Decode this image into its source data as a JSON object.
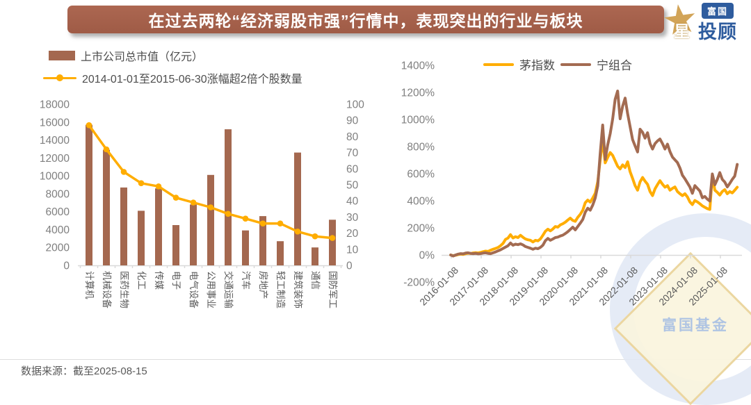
{
  "header": {
    "title": "在过去两轮“经济弱股市强”行情中，表现突出的行业与板块",
    "bar_color": "#A5614C",
    "logo": {
      "badge": "富国",
      "star_char": "星",
      "suffix": "投顾",
      "badge_bg": "#2E5C9E",
      "star_color": "#D2A458"
    }
  },
  "watermark": {
    "text": "富国基金"
  },
  "footer": {
    "source_text": "数据来源：截至2025-08-15"
  },
  "chart_data": [
    {
      "id": "industry-combo-chart",
      "type": "bar",
      "title": "",
      "categories": [
        "计算机",
        "机械设备",
        "医药生物",
        "化工",
        "传媒",
        "电子",
        "电气设备",
        "公用事业",
        "交通运输",
        "汽车",
        "房地产",
        "轻工制造",
        "建筑装饰",
        "通信",
        "国防军工"
      ],
      "left_axis": {
        "min": 0,
        "max": 18000,
        "step": 2000
      },
      "right_axis": {
        "min": 0,
        "max": 100,
        "step": 10
      },
      "grid": false,
      "legend_position": "top-left",
      "series": [
        {
          "name": "上市公司总市值（亿元）",
          "type": "bar",
          "axis": "left",
          "color": "#A4684F",
          "values": [
            15700,
            12900,
            8700,
            6100,
            8600,
            4500,
            6800,
            10100,
            15200,
            3900,
            5500,
            2700,
            12600,
            2000,
            5100
          ]
        },
        {
          "name": "2014-01-01至2015-06-30涨幅超2倍个股数量",
          "type": "line",
          "axis": "right",
          "color": "#FFAD00",
          "values": [
            87,
            72,
            58,
            51,
            49,
            42,
            39,
            36,
            32,
            29,
            26,
            26,
            21,
            18,
            17
          ]
        }
      ]
    },
    {
      "id": "mao-ning-trend-chart",
      "type": "line",
      "title": "",
      "y_axis": {
        "min": -200,
        "max": 1400,
        "step": 200,
        "suffix": "%"
      },
      "x_tick_labels": [
        "2016-01-08",
        "2017-01-08",
        "2018-01-08",
        "2019-01-08",
        "2020-01-08",
        "2021-01-08",
        "2022-01-08",
        "2023-01-08",
        "2024-01-08",
        "2025-01-08"
      ],
      "grid": false,
      "legend_position": "top-center",
      "series": [
        {
          "name": "茅指数",
          "color": "#FFAD00",
          "points": [
            [
              "2016-01",
              0
            ],
            [
              "2016-02",
              -5
            ],
            [
              "2016-03",
              -2
            ],
            [
              "2016-04",
              3
            ],
            [
              "2016-05",
              6
            ],
            [
              "2016-06",
              4
            ],
            [
              "2016-07",
              9
            ],
            [
              "2016-08",
              13
            ],
            [
              "2016-09",
              11
            ],
            [
              "2016-10",
              15
            ],
            [
              "2016-11",
              17
            ],
            [
              "2016-12",
              15
            ],
            [
              "2017-01",
              19
            ],
            [
              "2017-02",
              24
            ],
            [
              "2017-03",
              28
            ],
            [
              "2017-04",
              26
            ],
            [
              "2017-05",
              35
            ],
            [
              "2017-06",
              42
            ],
            [
              "2017-07",
              48
            ],
            [
              "2017-08",
              55
            ],
            [
              "2017-09",
              68
            ],
            [
              "2017-10",
              85
            ],
            [
              "2017-11",
              115
            ],
            [
              "2017-12",
              125
            ],
            [
              "2018-01",
              150
            ],
            [
              "2018-02",
              125
            ],
            [
              "2018-03",
              135
            ],
            [
              "2018-04",
              128
            ],
            [
              "2018-05",
              145
            ],
            [
              "2018-06",
              130
            ],
            [
              "2018-07",
              118
            ],
            [
              "2018-08",
              112
            ],
            [
              "2018-09",
              108
            ],
            [
              "2018-10",
              96
            ],
            [
              "2018-11",
              108
            ],
            [
              "2018-12",
              104
            ],
            [
              "2019-01",
              118
            ],
            [
              "2019-02",
              145
            ],
            [
              "2019-03",
              175
            ],
            [
              "2019-04",
              190
            ],
            [
              "2019-05",
              178
            ],
            [
              "2019-06",
              192
            ],
            [
              "2019-07",
              210
            ],
            [
              "2019-08",
              205
            ],
            [
              "2019-09",
              222
            ],
            [
              "2019-10",
              230
            ],
            [
              "2019-11",
              242
            ],
            [
              "2019-12",
              258
            ],
            [
              "2020-01",
              272
            ],
            [
              "2020-02",
              255
            ],
            [
              "2020-03",
              248
            ],
            [
              "2020-04",
              278
            ],
            [
              "2020-05",
              300
            ],
            [
              "2020-06",
              330
            ],
            [
              "2020-07",
              385
            ],
            [
              "2020-08",
              405
            ],
            [
              "2020-09",
              390
            ],
            [
              "2020-10",
              420
            ],
            [
              "2020-11",
              455
            ],
            [
              "2020-12",
              540
            ],
            [
              "2021-01",
              700
            ],
            [
              "2021-02",
              856
            ],
            [
              "2021-03",
              680
            ],
            [
              "2021-04",
              720
            ],
            [
              "2021-05",
              756
            ],
            [
              "2021-06",
              735
            ],
            [
              "2021-07",
              695
            ],
            [
              "2021-08",
              655
            ],
            [
              "2021-09",
              635
            ],
            [
              "2021-10",
              665
            ],
            [
              "2021-11",
              645
            ],
            [
              "2021-12",
              688
            ],
            [
              "2022-01",
              615
            ],
            [
              "2022-02",
              565
            ],
            [
              "2022-03",
              512
            ],
            [
              "2022-04",
              478
            ],
            [
              "2022-05",
              540
            ],
            [
              "2022-06",
              572
            ],
            [
              "2022-07",
              545
            ],
            [
              "2022-08",
              522
            ],
            [
              "2022-09",
              468
            ],
            [
              "2022-10",
              438
            ],
            [
              "2022-11",
              488
            ],
            [
              "2022-12",
              520
            ],
            [
              "2023-01",
              548
            ],
            [
              "2023-02",
              522
            ],
            [
              "2023-03",
              500
            ],
            [
              "2023-04",
              512
            ],
            [
              "2023-05",
              478
            ],
            [
              "2023-06",
              492
            ],
            [
              "2023-07",
              502
            ],
            [
              "2023-08",
              468
            ],
            [
              "2023-09",
              452
            ],
            [
              "2023-10",
              438
            ],
            [
              "2023-11",
              452
            ],
            [
              "2023-12",
              428
            ],
            [
              "2024-01",
              392
            ],
            [
              "2024-02",
              372
            ],
            [
              "2024-03",
              402
            ],
            [
              "2024-04",
              392
            ],
            [
              "2024-05",
              378
            ],
            [
              "2024-06",
              362
            ],
            [
              "2024-07",
              352
            ],
            [
              "2024-08",
              342
            ],
            [
              "2024-09",
              336
            ],
            [
              "2024-10",
              588
            ],
            [
              "2024-11",
              478
            ],
            [
              "2024-12",
              462
            ],
            [
              "2025-01",
              442
            ],
            [
              "2025-02",
              468
            ],
            [
              "2025-03",
              482
            ],
            [
              "2025-04",
              452
            ],
            [
              "2025-05",
              468
            ],
            [
              "2025-06",
              458
            ],
            [
              "2025-07",
              478
            ],
            [
              "2025-08",
              500
            ]
          ]
        },
        {
          "name": "宁组合",
          "color": "#A36B51",
          "points": [
            [
              "2016-01",
              0
            ],
            [
              "2016-02",
              -8
            ],
            [
              "2016-03",
              0
            ],
            [
              "2016-04",
              6
            ],
            [
              "2016-05",
              10
            ],
            [
              "2016-06",
              8
            ],
            [
              "2016-07",
              14
            ],
            [
              "2016-08",
              16
            ],
            [
              "2016-09",
              12
            ],
            [
              "2016-10",
              10
            ],
            [
              "2016-11",
              12
            ],
            [
              "2016-12",
              8
            ],
            [
              "2017-01",
              10
            ],
            [
              "2017-02",
              14
            ],
            [
              "2017-03",
              16
            ],
            [
              "2017-04",
              12
            ],
            [
              "2017-05",
              10
            ],
            [
              "2017-06",
              16
            ],
            [
              "2017-07",
              22
            ],
            [
              "2017-08",
              30
            ],
            [
              "2017-09",
              38
            ],
            [
              "2017-10",
              48
            ],
            [
              "2017-11",
              58
            ],
            [
              "2017-12",
              68
            ],
            [
              "2018-01",
              88
            ],
            [
              "2018-02",
              72
            ],
            [
              "2018-03",
              80
            ],
            [
              "2018-04",
              76
            ],
            [
              "2018-05",
              82
            ],
            [
              "2018-06",
              74
            ],
            [
              "2018-07",
              62
            ],
            [
              "2018-08",
              56
            ],
            [
              "2018-09",
              50
            ],
            [
              "2018-10",
              42
            ],
            [
              "2018-11",
              50
            ],
            [
              "2018-12",
              46
            ],
            [
              "2019-01",
              56
            ],
            [
              "2019-02",
              72
            ],
            [
              "2019-03",
              105
            ],
            [
              "2019-04",
              122
            ],
            [
              "2019-05",
              108
            ],
            [
              "2019-06",
              118
            ],
            [
              "2019-07",
              128
            ],
            [
              "2019-08",
              132
            ],
            [
              "2019-09",
              140
            ],
            [
              "2019-10",
              146
            ],
            [
              "2019-11",
              158
            ],
            [
              "2019-12",
              172
            ],
            [
              "2020-01",
              188
            ],
            [
              "2020-02",
              205
            ],
            [
              "2020-03",
              185
            ],
            [
              "2020-04",
              210
            ],
            [
              "2020-05",
              235
            ],
            [
              "2020-06",
              262
            ],
            [
              "2020-07",
              315
            ],
            [
              "2020-08",
              345
            ],
            [
              "2020-09",
              330
            ],
            [
              "2020-10",
              368
            ],
            [
              "2020-11",
              420
            ],
            [
              "2020-12",
              510
            ],
            [
              "2021-01",
              745
            ],
            [
              "2021-02",
              959
            ],
            [
              "2021-03",
              705
            ],
            [
              "2021-04",
              812
            ],
            [
              "2021-05",
              895
            ],
            [
              "2021-06",
              1005
            ],
            [
              "2021-07",
              1148
            ],
            [
              "2021-08",
              1210
            ],
            [
              "2021-09",
              1005
            ],
            [
              "2021-10",
              1098
            ],
            [
              "2021-11",
              1158
            ],
            [
              "2021-12",
              1042
            ],
            [
              "2022-01",
              948
            ],
            [
              "2022-02",
              852
            ],
            [
              "2022-03",
              805
            ],
            [
              "2022-04",
              760
            ],
            [
              "2022-05",
              928
            ],
            [
              "2022-06",
              905
            ],
            [
              "2022-07",
              862
            ],
            [
              "2022-08",
              902
            ],
            [
              "2022-09",
              822
            ],
            [
              "2022-10",
              782
            ],
            [
              "2022-11",
              822
            ],
            [
              "2022-12",
              842
            ],
            [
              "2023-01",
              856
            ],
            [
              "2023-02",
              822
            ],
            [
              "2023-03",
              782
            ],
            [
              "2023-04",
              818
            ],
            [
              "2023-05",
              762
            ],
            [
              "2023-06",
              722
            ],
            [
              "2023-07",
              702
            ],
            [
              "2023-08",
              682
            ],
            [
              "2023-09",
              642
            ],
            [
              "2023-10",
              588
            ],
            [
              "2023-11",
              562
            ],
            [
              "2023-12",
              532
            ],
            [
              "2024-01",
              502
            ],
            [
              "2024-02",
              455
            ],
            [
              "2024-03",
              512
            ],
            [
              "2024-04",
              492
            ],
            [
              "2024-05",
              472
            ],
            [
              "2024-06",
              422
            ],
            [
              "2024-07",
              432
            ],
            [
              "2024-08",
              412
            ],
            [
              "2024-09",
              398
            ],
            [
              "2024-10",
              598
            ],
            [
              "2024-11",
              518
            ],
            [
              "2024-12",
              558
            ],
            [
              "2025-01",
              608
            ],
            [
              "2025-02",
              558
            ],
            [
              "2025-03",
              538
            ],
            [
              "2025-04",
              502
            ],
            [
              "2025-05",
              528
            ],
            [
              "2025-06",
              558
            ],
            [
              "2025-07",
              582
            ],
            [
              "2025-08",
              668
            ]
          ]
        }
      ]
    }
  ]
}
